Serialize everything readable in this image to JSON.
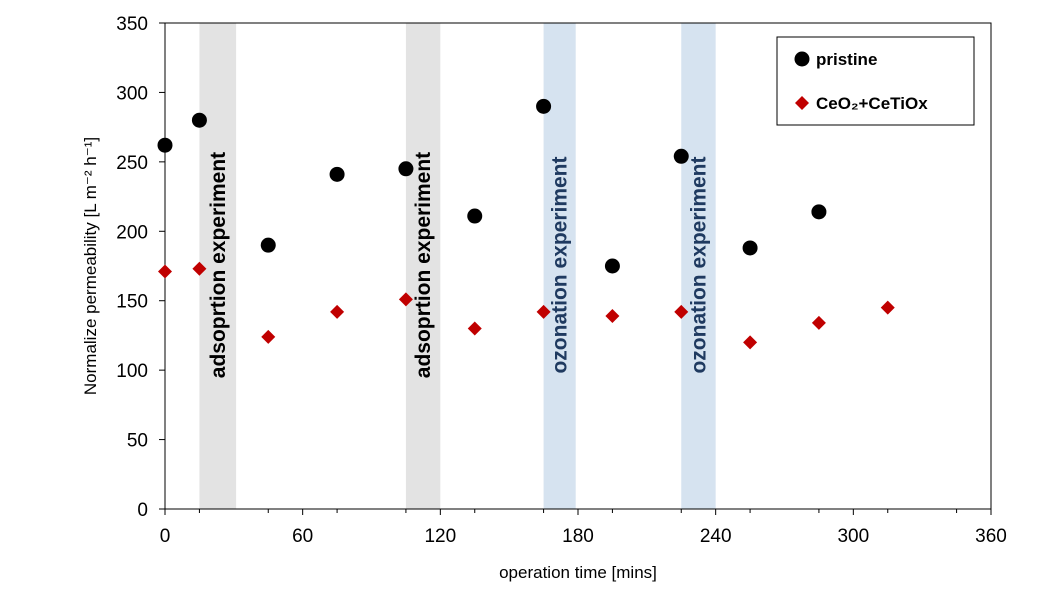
{
  "chart_data": {
    "type": "scatter",
    "xlabel": "operation time [mins]",
    "ylabel": "Normalize permeability [L m⁻² h⁻¹]",
    "xlim": [
      0,
      360
    ],
    "ylim": [
      0,
      350
    ],
    "xticks": [
      0,
      60,
      120,
      180,
      240,
      300,
      360
    ],
    "yticks": [
      0,
      50,
      100,
      150,
      200,
      250,
      300,
      350
    ],
    "grid": false,
    "legend_position": "top-right",
    "series": [
      {
        "name": "pristine",
        "marker": "circle",
        "color": "#000000",
        "points": [
          [
            0,
            262
          ],
          [
            15,
            280
          ],
          [
            45,
            190
          ],
          [
            75,
            241
          ],
          [
            105,
            245
          ],
          [
            135,
            211
          ],
          [
            165,
            290
          ],
          [
            195,
            175
          ],
          [
            225,
            254
          ],
          [
            255,
            188
          ],
          [
            285,
            214
          ]
        ]
      },
      {
        "name": "CeO₂+CeTiOx",
        "marker": "diamond",
        "color": "#c00000",
        "points": [
          [
            0,
            171
          ],
          [
            15,
            173
          ],
          [
            45,
            124
          ],
          [
            75,
            142
          ],
          [
            105,
            151
          ],
          [
            135,
            130
          ],
          [
            165,
            142
          ],
          [
            195,
            139
          ],
          [
            225,
            142
          ],
          [
            255,
            120
          ],
          [
            285,
            134
          ],
          [
            315,
            145
          ]
        ]
      }
    ],
    "bands": [
      {
        "x_start": 15,
        "x_end": 31,
        "color": "#e3e3e3",
        "label": "adsoprtion experiment",
        "label_color": "#000000"
      },
      {
        "x_start": 105,
        "x_end": 120,
        "color": "#e3e3e3",
        "label": "adsoprtion experiment",
        "label_color": "#000000"
      },
      {
        "x_start": 165,
        "x_end": 179,
        "color": "#d6e3f0",
        "label": "ozonation experiment",
        "label_color": "#1f3a60"
      },
      {
        "x_start": 225,
        "x_end": 240,
        "color": "#d6e3f0",
        "label": "ozonation experiment",
        "label_color": "#1f3a60"
      }
    ]
  }
}
